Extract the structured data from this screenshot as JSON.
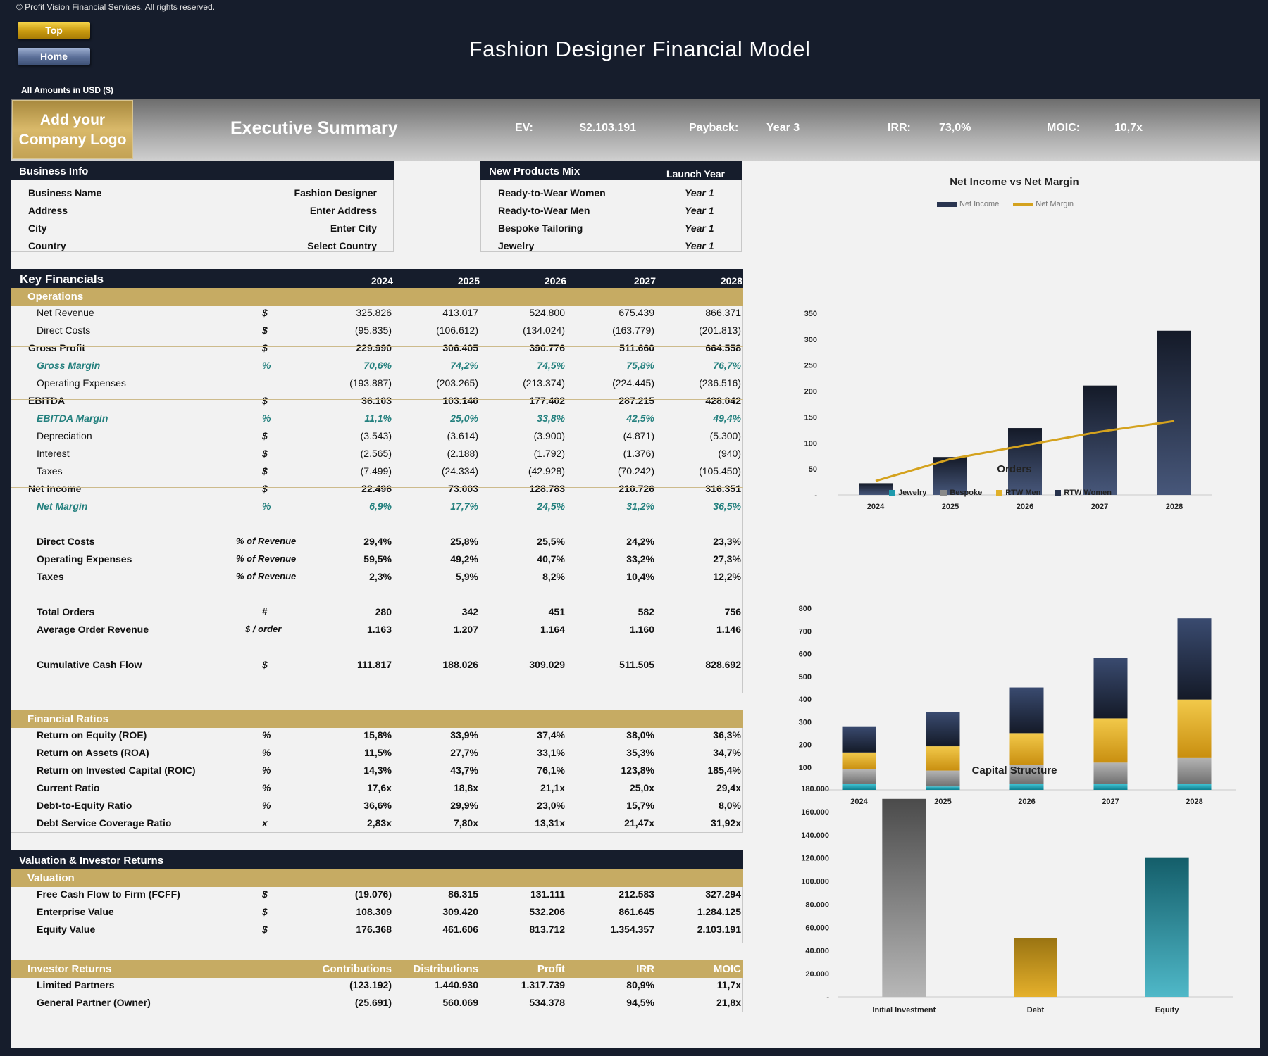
{
  "copyright": "© Profit Vision Financial Services. All rights reserved.",
  "nav": {
    "top": "Top",
    "home": "Home"
  },
  "title": "Fashion Designer Financial Model",
  "amounts": "All Amounts in  USD ($)",
  "summary": {
    "logo_line1": "Add your",
    "logo_line2": "Company Logo",
    "title": "Executive Summary",
    "ev_label": "EV:",
    "ev_value": "$2.103.191",
    "payback_label": "Payback:",
    "payback_value": "Year 3",
    "irr_label": "IRR:",
    "irr_value": "73,0%",
    "moic_label": "MOIC:",
    "moic_value": "10,7x"
  },
  "business_info": {
    "header": "Business Info",
    "rows": [
      {
        "label": "Business Name",
        "value": "Fashion Designer"
      },
      {
        "label": "Address",
        "value": "Enter Address"
      },
      {
        "label": "City",
        "value": "Enter City"
      },
      {
        "label": "Country",
        "value": "Select Country"
      }
    ]
  },
  "products": {
    "header": "New Products Mix",
    "header2": "Launch Year",
    "rows": [
      {
        "label": "Ready-to-Wear Women",
        "value": "Year 1"
      },
      {
        "label": "Ready-to-Wear Men",
        "value": "Year 1"
      },
      {
        "label": "Bespoke Tailoring",
        "value": "Year 1"
      },
      {
        "label": "Jewelry",
        "value": "Year 1"
      }
    ]
  },
  "key_financials": {
    "header": "Key Financials",
    "years": [
      "2024",
      "2025",
      "2026",
      "2027",
      "2028"
    ],
    "operations_label": "Operations",
    "rows": [
      {
        "label": "Net Revenue",
        "unit": "$",
        "values": [
          "325.826",
          "413.017",
          "524.800",
          "675.439",
          "866.371"
        ],
        "style": "normal"
      },
      {
        "label": "Direct Costs",
        "unit": "$",
        "values": [
          "(95.835)",
          "(106.612)",
          "(134.024)",
          "(163.779)",
          "(201.813)"
        ],
        "style": "normal"
      },
      {
        "label": "Gross Profit",
        "unit": "$",
        "values": [
          "229.990",
          "306.405",
          "390.776",
          "511.660",
          "664.558"
        ],
        "style": "bold"
      },
      {
        "label": "Gross Margin",
        "unit": "%",
        "values": [
          "70,6%",
          "74,2%",
          "74,5%",
          "75,8%",
          "76,7%"
        ],
        "style": "teal"
      },
      {
        "label": "Operating Expenses",
        "unit": "",
        "values": [
          "(193.887)",
          "(203.265)",
          "(213.374)",
          "(224.445)",
          "(236.516)"
        ],
        "style": "normal"
      },
      {
        "label": "EBITDA",
        "unit": "$",
        "values": [
          "36.103",
          "103.140",
          "177.402",
          "287.215",
          "428.042"
        ],
        "style": "bold"
      },
      {
        "label": "EBITDA Margin",
        "unit": "%",
        "values": [
          "11,1%",
          "25,0%",
          "33,8%",
          "42,5%",
          "49,4%"
        ],
        "style": "teal"
      },
      {
        "label": "Depreciation",
        "unit": "$",
        "values": [
          "(3.543)",
          "(3.614)",
          "(3.900)",
          "(4.871)",
          "(5.300)"
        ],
        "style": "normal"
      },
      {
        "label": "Interest",
        "unit": "$",
        "values": [
          "(2.565)",
          "(2.188)",
          "(1.792)",
          "(1.376)",
          "(940)"
        ],
        "style": "normal"
      },
      {
        "label": "Taxes",
        "unit": "$",
        "values": [
          "(7.499)",
          "(24.334)",
          "(42.928)",
          "(70.242)",
          "(105.450)"
        ],
        "style": "normal"
      },
      {
        "label": "Net Income",
        "unit": "$",
        "values": [
          "22.496",
          "73.003",
          "128.783",
          "210.726",
          "316.351"
        ],
        "style": "bold"
      },
      {
        "label": "Net Margin",
        "unit": "%",
        "values": [
          "6,9%",
          "17,7%",
          "24,5%",
          "31,2%",
          "36,5%"
        ],
        "style": "teal"
      }
    ],
    "pct_rows": [
      {
        "label": "Direct Costs",
        "unit": "% of Revenue",
        "values": [
          "29,4%",
          "25,8%",
          "25,5%",
          "24,2%",
          "23,3%"
        ]
      },
      {
        "label": "Operating Expenses",
        "unit": "% of Revenue",
        "values": [
          "59,5%",
          "49,2%",
          "40,7%",
          "33,2%",
          "27,3%"
        ]
      },
      {
        "label": "Taxes",
        "unit": "% of Revenue",
        "values": [
          "2,3%",
          "5,9%",
          "8,2%",
          "10,4%",
          "12,2%"
        ]
      }
    ],
    "order_rows": [
      {
        "label": "Total Orders",
        "unit": "#",
        "values": [
          "280",
          "342",
          "451",
          "582",
          "756"
        ]
      },
      {
        "label": "Average Order Revenue",
        "unit": "$  / order",
        "values": [
          "1.163",
          "1.207",
          "1.164",
          "1.160",
          "1.146"
        ]
      }
    ],
    "cash_row": {
      "label": "Cumulative Cash Flow",
      "unit": "$",
      "values": [
        "111.817",
        "188.026",
        "309.029",
        "511.505",
        "828.692"
      ]
    }
  },
  "ratios": {
    "header": "Financial Ratios",
    "rows": [
      {
        "label": "Return on Equity (ROE)",
        "unit": "%",
        "values": [
          "15,8%",
          "33,9%",
          "37,4%",
          "38,0%",
          "36,3%"
        ]
      },
      {
        "label": "Return on Assets (ROA)",
        "unit": "%",
        "values": [
          "11,5%",
          "27,7%",
          "33,1%",
          "35,3%",
          "34,7%"
        ]
      },
      {
        "label": "Return on Invested Capital (ROIC)",
        "unit": "%",
        "values": [
          "14,3%",
          "43,7%",
          "76,1%",
          "123,8%",
          "185,4%"
        ]
      },
      {
        "label": "Current Ratio",
        "unit": "%",
        "values": [
          "17,6x",
          "18,8x",
          "21,1x",
          "25,0x",
          "29,4x"
        ]
      },
      {
        "label": "Debt-to-Equity Ratio",
        "unit": "%",
        "values": [
          "36,6%",
          "29,9%",
          "23,0%",
          "15,7%",
          "8,0%"
        ]
      },
      {
        "label": "Debt Service Coverage Ratio",
        "unit": "x",
        "values": [
          "2,83x",
          "7,80x",
          "13,31x",
          "21,47x",
          "31,92x"
        ]
      }
    ]
  },
  "valuation": {
    "header": "Valuation & Investor Returns",
    "sub": "Valuation",
    "rows": [
      {
        "label": "Free Cash Flow to Firm (FCFF)",
        "unit": "$",
        "values": [
          "(19.076)",
          "86.315",
          "131.111",
          "212.583",
          "327.294"
        ]
      },
      {
        "label": "Enterprise Value",
        "unit": "$",
        "values": [
          "108.309",
          "309.420",
          "532.206",
          "861.645",
          "1.284.125"
        ]
      },
      {
        "label": "Equity Value",
        "unit": "$",
        "values": [
          "176.368",
          "461.606",
          "813.712",
          "1.354.357",
          "2.103.191"
        ]
      }
    ],
    "investor_label": "Investor Returns",
    "investor_cols": [
      "Contributions",
      "Distributions",
      "Profit",
      "IRR",
      "MOIC"
    ],
    "investor_rows": [
      {
        "label": "Limited Partners",
        "values": [
          "(123.192)",
          "1.440.930",
          "1.317.739",
          "80,9%",
          "11,7x"
        ]
      },
      {
        "label": "General Partner (Owner)",
        "values": [
          "(25.691)",
          "560.069",
          "534.378",
          "94,5%",
          "21,8x"
        ]
      }
    ]
  },
  "chart_data": [
    {
      "type": "bar",
      "title": "Net Income vs Net Margin",
      "categories": [
        "2024",
        "2025",
        "2026",
        "2027",
        "2028"
      ],
      "series": [
        {
          "name": "Net Income",
          "values": [
            22.5,
            73.0,
            128.8,
            210.7,
            316.4
          ],
          "color": "#1e2638"
        },
        {
          "name": "Net Margin",
          "type": "line",
          "values": [
            6.9,
            17.7,
            24.5,
            31.2,
            36.5
          ],
          "color": "#d4a21e"
        }
      ],
      "y_ticks": [
        "-",
        "50",
        "100",
        "150",
        "200",
        "250",
        "300",
        "350"
      ],
      "ylim": [
        0,
        350
      ],
      "legend": "top"
    },
    {
      "type": "bar",
      "title": "Orders",
      "stacked": true,
      "categories": [
        "2024",
        "2025",
        "2026",
        "2027",
        "2028"
      ],
      "series": [
        {
          "name": "Jewelry",
          "values": [
            25,
            15,
            25,
            25,
            25
          ],
          "color": "#1e9aad"
        },
        {
          "name": "Bespoke",
          "values": [
            65,
            70,
            85,
            95,
            118
          ],
          "color": "#8a8a8a"
        },
        {
          "name": "RTW Men",
          "values": [
            75,
            107,
            140,
            195,
            255
          ],
          "color": "#e0b02a"
        },
        {
          "name": "RTW Women",
          "values": [
            115,
            150,
            201,
            267,
            358
          ],
          "color": "#27324c"
        }
      ],
      "y_ticks": [
        "-",
        "100",
        "200",
        "300",
        "400",
        "500",
        "600",
        "700",
        "800"
      ],
      "ylim": [
        0,
        800
      ],
      "legend": "top"
    },
    {
      "type": "bar",
      "title": "Capital Structure",
      "categories": [
        "Initial Investment",
        "Debt",
        "Equity"
      ],
      "values": [
        171000,
        51000,
        120000
      ],
      "colors": [
        "#6e6e6e",
        "#d4a21e",
        "#1e8a98"
      ],
      "y_ticks": [
        "-",
        "20.000",
        "40.000",
        "60.000",
        "80.000",
        "100.000",
        "120.000",
        "140.000",
        "160.000",
        "180.000"
      ],
      "ylim": [
        0,
        180000
      ]
    }
  ]
}
